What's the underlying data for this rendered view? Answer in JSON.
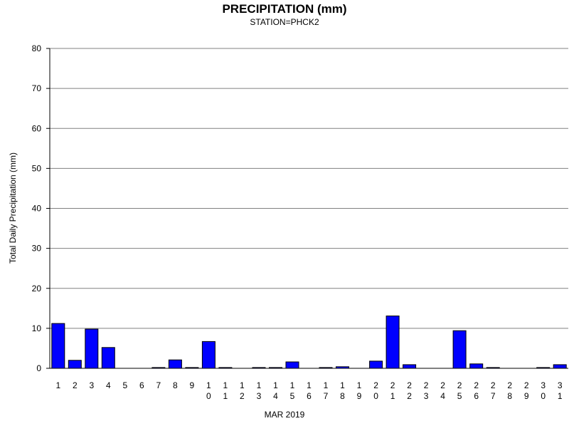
{
  "chart_data": {
    "type": "bar",
    "title": "PRECIPITATION (mm)",
    "subtitle": "STATION=PHCK2",
    "xlabel": "MAR 2019",
    "ylabel": "Total Daily Precipitation (mm)",
    "ylim": [
      0,
      80
    ],
    "yticks": [
      0,
      10,
      20,
      30,
      40,
      50,
      60,
      70,
      80
    ],
    "grid": true,
    "categories": [
      "1",
      "2",
      "3",
      "4",
      "5",
      "6",
      "7",
      "8",
      "9",
      "10",
      "11",
      "12",
      "13",
      "14",
      "15",
      "16",
      "17",
      "18",
      "19",
      "20",
      "21",
      "22",
      "23",
      "24",
      "25",
      "26",
      "27",
      "28",
      "29",
      "30",
      "31"
    ],
    "values": [
      11.2,
      2.0,
      9.8,
      5.2,
      0,
      0,
      0.2,
      2.1,
      0.2,
      6.7,
      0.2,
      0,
      0.2,
      0.2,
      1.6,
      0,
      0.2,
      0.4,
      0,
      1.8,
      13.1,
      0.9,
      0,
      0,
      9.4,
      1.1,
      0.2,
      0,
      0,
      0.2,
      0.9
    ],
    "bar_color": "#0000ff",
    "bar_edge_color": "#000000",
    "grid_color": "#808080"
  }
}
